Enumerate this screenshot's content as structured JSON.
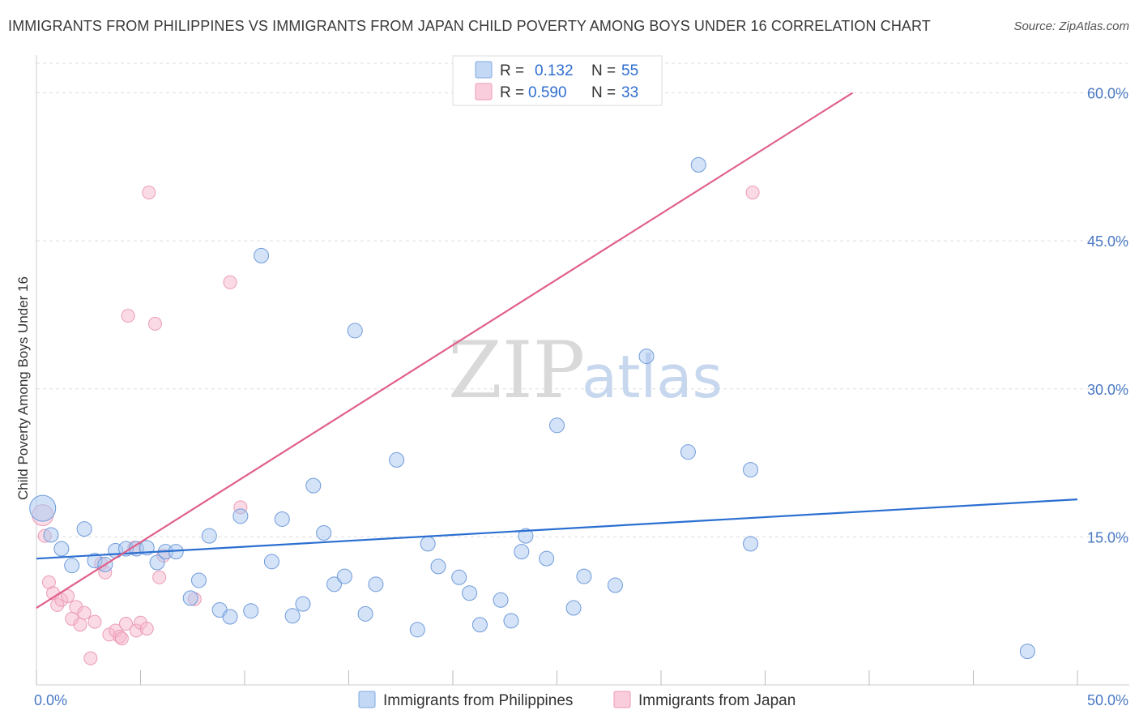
{
  "title": "IMMIGRANTS FROM PHILIPPINES VS IMMIGRANTS FROM JAPAN CHILD POVERTY AMONG BOYS UNDER 16 CORRELATION CHART",
  "source": "Source: ZipAtlas.com",
  "watermark": {
    "zip": "ZIP",
    "atlas": "atlas"
  },
  "legend": {
    "rows": [
      {
        "r_label": "R =",
        "r_value": "0.132",
        "n_label": "N =",
        "n_value": "55"
      },
      {
        "r_label": "R =",
        "r_value": "0.590",
        "n_label": "N =",
        "n_value": "33"
      }
    ]
  },
  "colors": {
    "philippines": "#aac8f0",
    "philippines_line": "#2b6fd1",
    "japan": "#f6b8cc",
    "japan_line": "#e0608a",
    "tick": "#4a79c4"
  },
  "chart_data": {
    "type": "scatter",
    "title": "IMMIGRANTS FROM PHILIPPINES VS IMMIGRANTS FROM JAPAN CHILD POVERTY AMONG BOYS UNDER 16 CORRELATION CHART",
    "xlabel": "",
    "ylabel": "Child Poverty Among Boys Under 16",
    "xlim": [
      0,
      50
    ],
    "ylim": [
      0,
      63
    ],
    "x_tick_labels": [
      "0.0%",
      "50.0%"
    ],
    "y_ticks": [
      15,
      30,
      45,
      60
    ],
    "y_tick_labels": [
      "15.0%",
      "30.0%",
      "45.0%",
      "60.0%"
    ],
    "grid": true,
    "legend_position": "top-center",
    "series": [
      {
        "name": "Immigrants from Philippines",
        "color": "#aac8f0",
        "trend": {
          "x": [
            0,
            50
          ],
          "y": [
            12.8,
            18.8
          ]
        },
        "points": [
          [
            0.3,
            17.9
          ],
          [
            0.7,
            15.2
          ],
          [
            1.2,
            13.8
          ],
          [
            1.7,
            12.1
          ],
          [
            2.3,
            15.8
          ],
          [
            2.8,
            12.6
          ],
          [
            3.3,
            12.2
          ],
          [
            3.8,
            13.6
          ],
          [
            4.3,
            13.8
          ],
          [
            4.8,
            13.8
          ],
          [
            5.3,
            13.9
          ],
          [
            5.8,
            12.4
          ],
          [
            6.2,
            13.5
          ],
          [
            6.7,
            13.5
          ],
          [
            7.4,
            8.8
          ],
          [
            7.8,
            10.6
          ],
          [
            8.3,
            15.1
          ],
          [
            8.8,
            7.6
          ],
          [
            9.3,
            6.9
          ],
          [
            9.8,
            17.1
          ],
          [
            10.3,
            7.5
          ],
          [
            10.8,
            43.5
          ],
          [
            11.3,
            12.5
          ],
          [
            11.8,
            16.8
          ],
          [
            12.3,
            7.0
          ],
          [
            12.8,
            8.2
          ],
          [
            13.3,
            20.2
          ],
          [
            13.8,
            15.4
          ],
          [
            14.3,
            10.2
          ],
          [
            14.8,
            11.0
          ],
          [
            15.3,
            35.9
          ],
          [
            15.8,
            7.2
          ],
          [
            16.3,
            10.2
          ],
          [
            17.3,
            22.8
          ],
          [
            18.3,
            5.6
          ],
          [
            18.8,
            14.3
          ],
          [
            19.3,
            12.0
          ],
          [
            20.3,
            10.9
          ],
          [
            20.8,
            9.3
          ],
          [
            21.3,
            6.1
          ],
          [
            22.3,
            8.6
          ],
          [
            22.8,
            6.5
          ],
          [
            23.3,
            13.5
          ],
          [
            23.5,
            15.1
          ],
          [
            24.5,
            12.8
          ],
          [
            25.0,
            26.3
          ],
          [
            25.8,
            7.8
          ],
          [
            26.3,
            11.0
          ],
          [
            27.8,
            10.1
          ],
          [
            29.3,
            33.3
          ],
          [
            31.3,
            23.6
          ],
          [
            31.8,
            52.7
          ],
          [
            34.3,
            21.8
          ],
          [
            34.3,
            14.3
          ],
          [
            47.6,
            3.4
          ]
        ]
      },
      {
        "name": "Immigrants from Japan",
        "color": "#f6b8cc",
        "trend": {
          "x": [
            0,
            39.2
          ],
          "y": [
            7.8,
            60.0
          ]
        },
        "points": [
          [
            0.3,
            17.2
          ],
          [
            0.4,
            15.1
          ],
          [
            0.6,
            10.4
          ],
          [
            0.8,
            9.3
          ],
          [
            1.0,
            8.1
          ],
          [
            1.2,
            8.6
          ],
          [
            1.5,
            9.0
          ],
          [
            1.7,
            6.7
          ],
          [
            1.9,
            7.9
          ],
          [
            2.1,
            6.1
          ],
          [
            2.3,
            7.3
          ],
          [
            2.6,
            2.7
          ],
          [
            2.8,
            6.4
          ],
          [
            3.1,
            12.3
          ],
          [
            3.3,
            11.4
          ],
          [
            3.5,
            5.1
          ],
          [
            3.8,
            5.5
          ],
          [
            4.0,
            4.9
          ],
          [
            4.1,
            4.7
          ],
          [
            4.3,
            6.2
          ],
          [
            4.4,
            37.4
          ],
          [
            4.7,
            13.9
          ],
          [
            4.8,
            5.5
          ],
          [
            5.0,
            6.3
          ],
          [
            5.3,
            5.7
          ],
          [
            5.4,
            49.9
          ],
          [
            5.7,
            36.6
          ],
          [
            5.9,
            10.9
          ],
          [
            6.1,
            13.1
          ],
          [
            7.6,
            8.7
          ],
          [
            9.3,
            40.8
          ],
          [
            9.8,
            18.0
          ],
          [
            34.4,
            49.9
          ]
        ]
      }
    ]
  },
  "bottom_legend": [
    {
      "label": "Immigrants from Philippines"
    },
    {
      "label": "Immigrants from Japan"
    }
  ]
}
